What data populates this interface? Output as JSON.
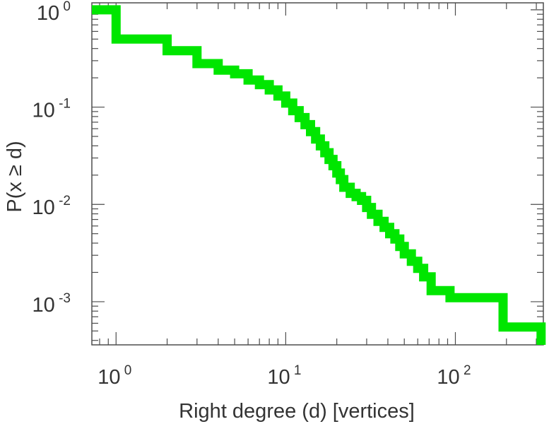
{
  "chart_data": {
    "type": "line",
    "subtype": "step-ccdf",
    "title": "",
    "xlabel": "Right degree (d) [vertices]",
    "ylabel": "P(x ≥ d)",
    "x_scale": "log",
    "y_scale": "log",
    "xlim": [
      0.72,
      330
    ],
    "ylim": [
      0.00036,
      1.18
    ],
    "grid": false,
    "legend": "none",
    "series_color": "#00e600",
    "x_ticks": [
      {
        "value": 1,
        "base": "10",
        "exp": "0"
      },
      {
        "value": 10,
        "base": "10",
        "exp": "1"
      },
      {
        "value": 100,
        "base": "10",
        "exp": "2"
      }
    ],
    "y_ticks": [
      {
        "value": 1,
        "base": "10",
        "exp": "0"
      },
      {
        "value": 0.1,
        "base": "10",
        "exp": "-1"
      },
      {
        "value": 0.01,
        "base": "10",
        "exp": "-2"
      },
      {
        "value": 0.001,
        "base": "10",
        "exp": "-3"
      }
    ],
    "series": [
      {
        "x": [
          0.72,
          1,
          2,
          3,
          4,
          5,
          6,
          7,
          8,
          9,
          10,
          11,
          12,
          13,
          14,
          15,
          16,
          17,
          18,
          19,
          20,
          21,
          22,
          24,
          26,
          28,
          30,
          32,
          35,
          38,
          41,
          44,
          47,
          50,
          55,
          60,
          65,
          72,
          93,
          191,
          320
        ],
        "y": [
          1.0,
          0.5,
          0.38,
          0.28,
          0.24,
          0.22,
          0.19,
          0.17,
          0.15,
          0.13,
          0.11,
          0.092,
          0.078,
          0.066,
          0.056,
          0.047,
          0.04,
          0.034,
          0.029,
          0.025,
          0.021,
          0.018,
          0.015,
          0.013,
          0.012,
          0.011,
          0.0093,
          0.0079,
          0.0067,
          0.0058,
          0.005,
          0.0044,
          0.0037,
          0.0031,
          0.0026,
          0.0022,
          0.0018,
          0.0013,
          0.0011,
          0.00055,
          0.00036
        ]
      }
    ]
  }
}
